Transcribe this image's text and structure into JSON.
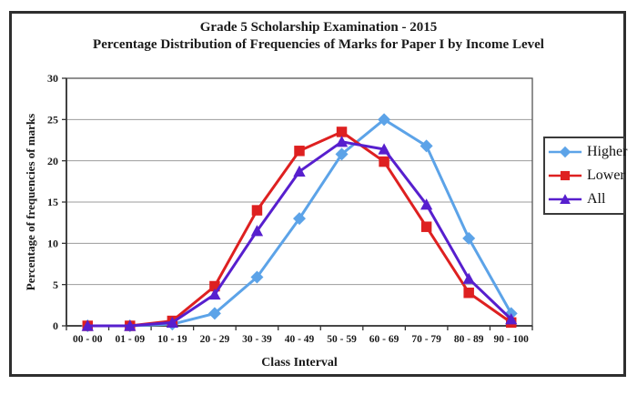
{
  "title": {
    "line1": "Grade 5 Scholarship Examination - 2015",
    "line2": "Percentage Distribution of Frequencies of Marks for Paper I by Income Level"
  },
  "chart_data": {
    "type": "line",
    "title": "Grade 5 Scholarship Examination - 2015 — Percentage Distribution of Frequencies of Marks for Paper I by Income Level",
    "xlabel": "Class Interval",
    "ylabel": "Percentage of frequencies of marks",
    "categories": [
      "00 - 00",
      "01 - 09",
      "10 - 19",
      "20 - 29",
      "30 - 39",
      "40 - 49",
      "50 - 59",
      "60 - 69",
      "70 - 79",
      "80 - 89",
      "90 - 100"
    ],
    "series": [
      {
        "name": "Higher",
        "marker": "diamond",
        "color": "#5CA3E8",
        "values": [
          0,
          0,
          0.2,
          1.5,
          5.9,
          13.0,
          20.8,
          25.0,
          21.8,
          10.6,
          1.5
        ]
      },
      {
        "name": "Lower",
        "marker": "square",
        "color": "#DE2020",
        "values": [
          0,
          0,
          0.6,
          4.8,
          14.0,
          21.2,
          23.5,
          19.9,
          12.0,
          4.0,
          0.4
        ]
      },
      {
        "name": "All",
        "marker": "triangle",
        "color": "#571FCE",
        "values": [
          0,
          0,
          0.4,
          3.8,
          11.5,
          18.7,
          22.3,
          21.4,
          14.7,
          5.7,
          0.8
        ]
      }
    ],
    "ylim": [
      0,
      30
    ],
    "y_ticks": [
      0,
      5,
      10,
      15,
      20,
      25,
      30
    ],
    "grid": "horizontal",
    "legend_position": "right"
  },
  "colors": {
    "gridline": "#9b9b9b",
    "plot_border": "#555555",
    "axis": "#333333",
    "frame_border": "#2e2e2e",
    "background": "#ffffff"
  }
}
